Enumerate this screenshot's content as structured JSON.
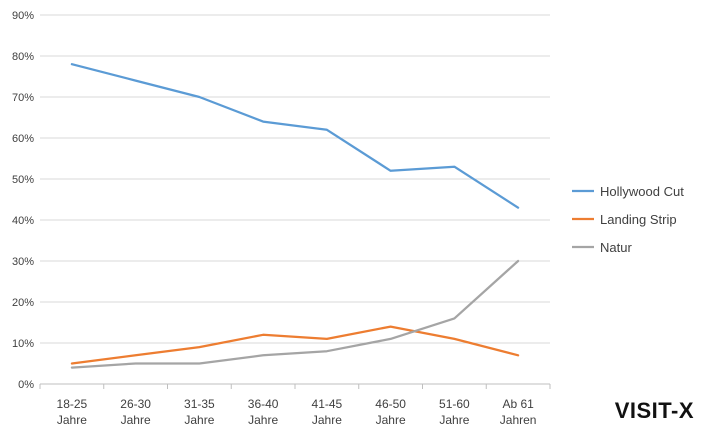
{
  "chart_data": {
    "type": "line",
    "categories": [
      "18-25 Jahre",
      "26-30 Jahre",
      "31-35 Jahre",
      "36-40 Jahre",
      "41-45 Jahre",
      "46-50 Jahre",
      "51-60 Jahre",
      "Ab 61 Jahren"
    ],
    "category_lines": [
      [
        "18-25",
        "Jahre"
      ],
      [
        "26-30",
        "Jahre"
      ],
      [
        "31-35",
        "Jahre"
      ],
      [
        "36-40",
        "Jahre"
      ],
      [
        "41-45",
        "Jahre"
      ],
      [
        "46-50",
        "Jahre"
      ],
      [
        "51-60",
        "Jahre"
      ],
      [
        "Ab 61",
        "Jahren"
      ]
    ],
    "series": [
      {
        "name": "Hollywood Cut",
        "color": "#5b9bd5",
        "values": [
          78,
          74,
          70,
          64,
          62,
          52,
          53,
          43
        ]
      },
      {
        "name": "Landing Strip",
        "color": "#ed7d31",
        "values": [
          5,
          7,
          9,
          12,
          11,
          14,
          11,
          7
        ]
      },
      {
        "name": "Natur",
        "color": "#a5a5a5",
        "values": [
          4,
          5,
          5,
          7,
          8,
          11,
          16,
          30
        ]
      }
    ],
    "ylim": [
      0,
      90
    ],
    "yticks": [
      0,
      10,
      20,
      30,
      40,
      50,
      60,
      70,
      80,
      90
    ],
    "ytick_format": "percent",
    "grid": true,
    "legend": "right",
    "xlabel": "",
    "ylabel": ""
  },
  "watermark": "VISIT-X"
}
